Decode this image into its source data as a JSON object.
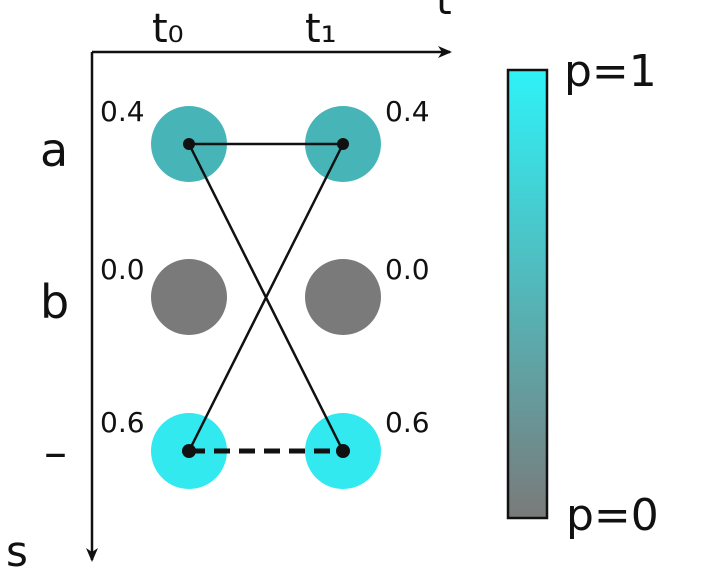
{
  "axes": {
    "time_label": "t",
    "state_label": "s",
    "columns": [
      "t₀",
      "t₁"
    ],
    "rows": [
      "a",
      "b",
      "–"
    ]
  },
  "nodes": [
    {
      "row": 0,
      "col": 0,
      "value_label": "0.4",
      "p": 0.4
    },
    {
      "row": 0,
      "col": 1,
      "value_label": "0.4",
      "p": 0.4
    },
    {
      "row": 1,
      "col": 0,
      "value_label": "0.0",
      "p": 0.0
    },
    {
      "row": 1,
      "col": 1,
      "value_label": "0.0",
      "p": 0.0
    },
    {
      "row": 2,
      "col": 0,
      "value_label": "0.6",
      "p": 0.6
    },
    {
      "row": 2,
      "col": 1,
      "value_label": "0.6",
      "p": 0.6
    }
  ],
  "edges": [
    {
      "from": [
        0,
        0
      ],
      "to": [
        0,
        1
      ],
      "style": "solid"
    },
    {
      "from": [
        0,
        0
      ],
      "to": [
        2,
        1
      ],
      "style": "solid"
    },
    {
      "from": [
        2,
        0
      ],
      "to": [
        0,
        1
      ],
      "style": "solid"
    },
    {
      "from": [
        2,
        0
      ],
      "to": [
        2,
        1
      ],
      "style": "dashed"
    }
  ],
  "colorbar": {
    "top_label": "p=1",
    "bottom_label": "p=0",
    "color_high": "#2ef2f7",
    "color_low": "#7a7a7a"
  },
  "colors": {
    "node_zero": "#7a7a7a",
    "node_low": "#47b5b7",
    "node_high": "#31e9ef",
    "line": "#111111"
  }
}
